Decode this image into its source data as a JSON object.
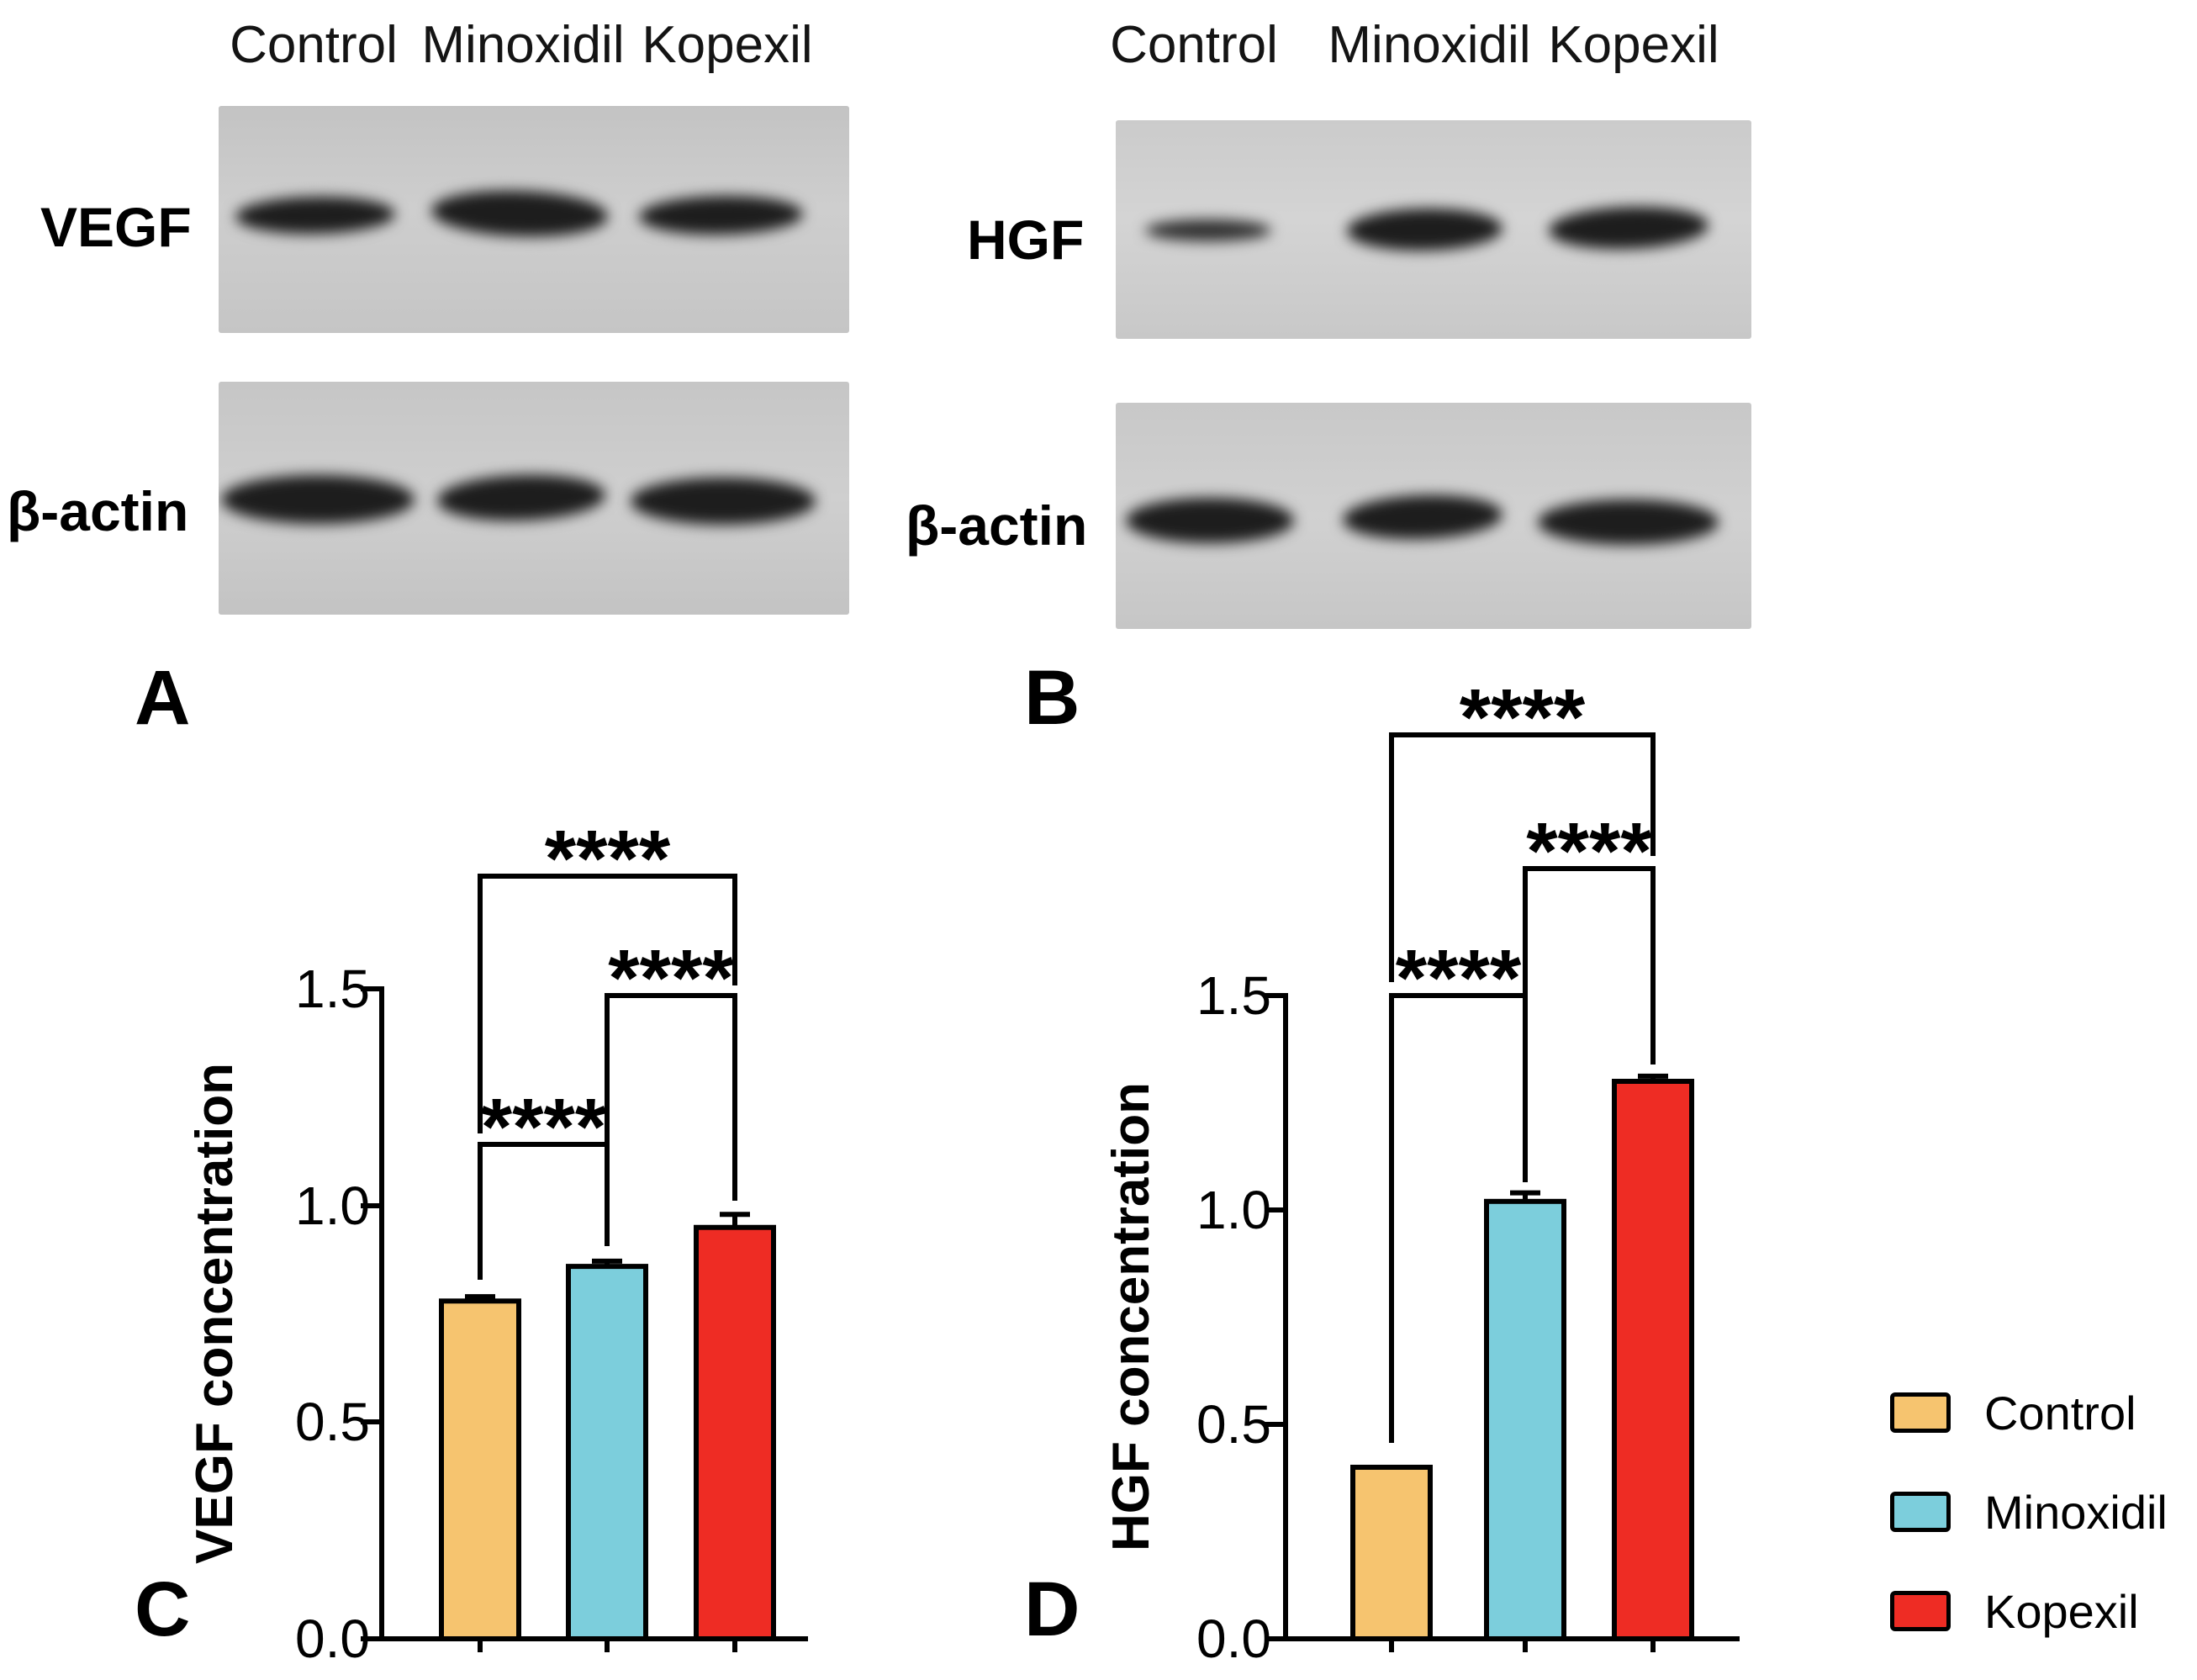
{
  "panel_a": {
    "label": "A",
    "lane_labels": [
      "Control",
      "Minoxidil",
      "Kopexil"
    ],
    "row_labels": [
      "VEGF",
      "β-actin"
    ]
  },
  "panel_b": {
    "label": "B",
    "lane_labels": [
      "Control",
      "Minoxidil",
      "Kopexil"
    ],
    "row_labels": [
      "HGF",
      "β-actin"
    ]
  },
  "panel_c": {
    "label": "C"
  },
  "panel_d": {
    "label": "D"
  },
  "legend": {
    "items": [
      {
        "label": "Control",
        "color": "#F6C46F"
      },
      {
        "label": "Minoxidil",
        "color": "#7CCEDC"
      },
      {
        "label": "Kopexil",
        "color": "#EE2C24"
      }
    ]
  },
  "chart_data": [
    {
      "type": "bar",
      "panel": "C",
      "ylabel": "VEGF concentration",
      "categories": [
        "Control",
        "Minoxidil",
        "Kopexil"
      ],
      "values": [
        0.78,
        0.86,
        0.95
      ],
      "errors": [
        0.01,
        0.012,
        0.03
      ],
      "bar_colors": [
        "#F6C46F",
        "#7CCEDC",
        "#EE2C24"
      ],
      "ylim": [
        0,
        1.5
      ],
      "yticks": [
        0,
        0.5,
        1.0,
        1.5
      ],
      "ytick_labels": [
        "0.0",
        "0.5",
        "1.0",
        "1.5"
      ],
      "grid": false,
      "legend_position": "right",
      "significance": [
        {
          "groups": [
            "Control",
            "Minoxidil"
          ],
          "label": "****"
        },
        {
          "groups": [
            "Minoxidil",
            "Kopexil"
          ],
          "label": "****"
        },
        {
          "groups": [
            "Control",
            "Kopexil"
          ],
          "label": "****"
        }
      ]
    },
    {
      "type": "bar",
      "panel": "D",
      "ylabel": "HGF concentration",
      "categories": [
        "Control",
        "Minoxidil",
        "Kopexil"
      ],
      "values": [
        0.4,
        1.02,
        1.3
      ],
      "errors": [
        0.005,
        0.02,
        0.012
      ],
      "bar_colors": [
        "#F6C46F",
        "#7CCEDC",
        "#EE2C24"
      ],
      "ylim": [
        0,
        1.5
      ],
      "yticks": [
        0,
        0.5,
        1.0,
        1.5
      ],
      "ytick_labels": [
        "0.0",
        "0.5",
        "1.0",
        "1.5"
      ],
      "grid": false,
      "legend_position": "right",
      "significance": [
        {
          "groups": [
            "Control",
            "Minoxidil"
          ],
          "label": "****"
        },
        {
          "groups": [
            "Minoxidil",
            "Kopexil"
          ],
          "label": "****"
        },
        {
          "groups": [
            "Control",
            "Kopexil"
          ],
          "label": "****"
        }
      ]
    }
  ]
}
